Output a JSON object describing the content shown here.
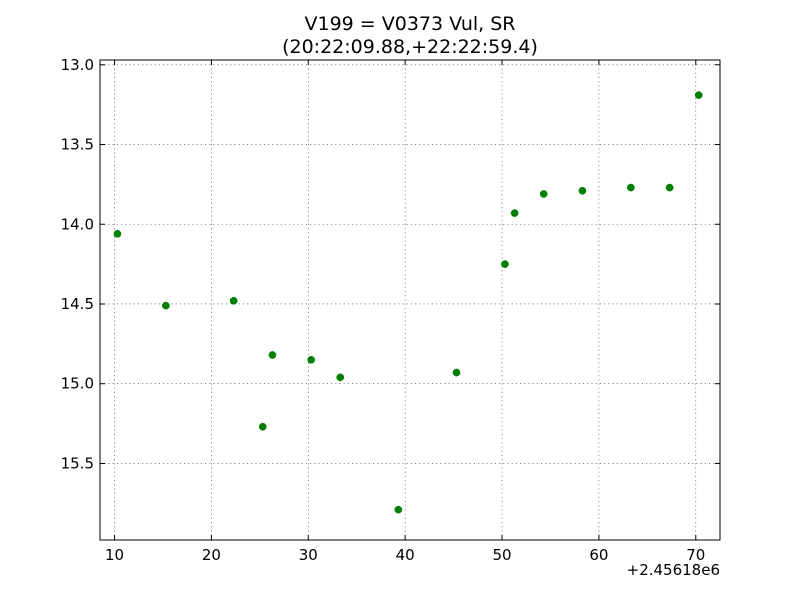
{
  "chart_data": {
    "type": "scatter",
    "title": "V199 = V0373 Vul, SR",
    "subtitle": "(20:22:09.88,+22:22:59.4)",
    "x_offset_label": "+2.45618e6",
    "xlim": [
      8.5,
      72.5
    ],
    "ylim": [
      15.98,
      12.97
    ],
    "y_inverted": true,
    "x_ticks": [
      10,
      20,
      30,
      40,
      50,
      60,
      70
    ],
    "x_tick_labels": [
      "10",
      "20",
      "30",
      "40",
      "50",
      "60",
      "70"
    ],
    "y_ticks": [
      13.0,
      13.5,
      14.0,
      14.5,
      15.0,
      15.5
    ],
    "y_tick_labels": [
      "13.0",
      "13.5",
      "14.0",
      "14.5",
      "15.0",
      "15.5"
    ],
    "grid": true,
    "marker_color": "#007f00",
    "points": [
      {
        "x": 10.3,
        "y": 14.06
      },
      {
        "x": 15.3,
        "y": 14.51
      },
      {
        "x": 22.3,
        "y": 14.48
      },
      {
        "x": 25.3,
        "y": 15.27
      },
      {
        "x": 26.3,
        "y": 14.82
      },
      {
        "x": 30.3,
        "y": 14.85
      },
      {
        "x": 33.3,
        "y": 14.96
      },
      {
        "x": 39.3,
        "y": 15.79
      },
      {
        "x": 45.3,
        "y": 14.93
      },
      {
        "x": 50.3,
        "y": 14.25
      },
      {
        "x": 51.3,
        "y": 13.93
      },
      {
        "x": 54.3,
        "y": 13.81
      },
      {
        "x": 58.3,
        "y": 13.79
      },
      {
        "x": 63.3,
        "y": 13.77
      },
      {
        "x": 67.3,
        "y": 13.77
      },
      {
        "x": 70.3,
        "y": 13.19
      }
    ]
  }
}
